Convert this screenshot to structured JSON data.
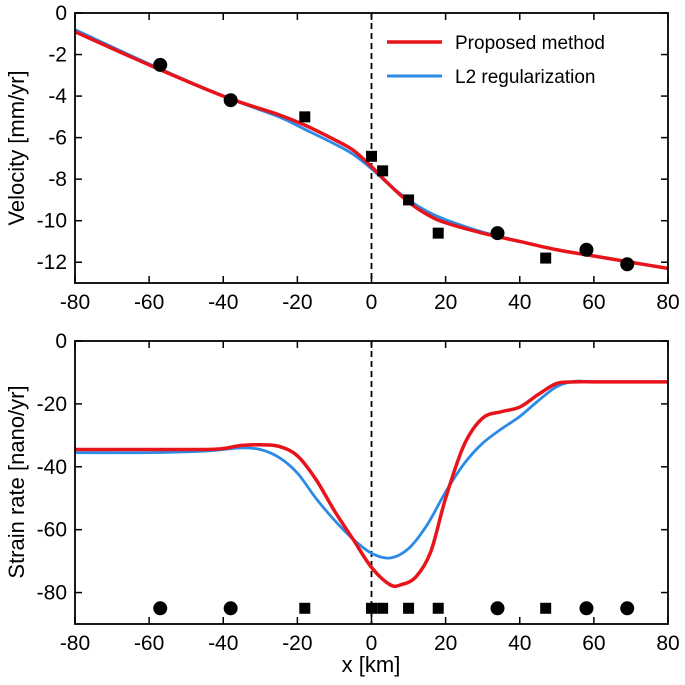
{
  "chart_data": [
    {
      "type": "line",
      "xlabel": "",
      "ylabel": "Velocity [mm/yr]",
      "xlim": [
        -80,
        80
      ],
      "ylim": [
        -13,
        0
      ],
      "xticks": [
        "-80",
        "-60",
        "-40",
        "-20",
        "0",
        "20",
        "40",
        "60",
        "80"
      ],
      "yticks": [
        "0",
        "-2",
        "-4",
        "-6",
        "-8",
        "-10",
        "-12"
      ],
      "legend": {
        "placement": "top-right",
        "entries": [
          "Proposed method",
          "L2 regularization"
        ]
      },
      "series": [
        {
          "name": "Proposed method",
          "color": "#e8141c",
          "x": [
            -80,
            -60,
            -40,
            -25,
            -18,
            -10,
            -5,
            0,
            5,
            10,
            15,
            20,
            30,
            40,
            50,
            60,
            70,
            80
          ],
          "y": [
            -0.9,
            -2.5,
            -4.0,
            -4.9,
            -5.4,
            -6.1,
            -6.6,
            -7.4,
            -8.3,
            -9.1,
            -9.7,
            -10.1,
            -10.6,
            -11.0,
            -11.4,
            -11.7,
            -12.0,
            -12.3
          ]
        },
        {
          "name": "L2 regularization",
          "color": "#2b8be6",
          "x": [
            -80,
            -60,
            -40,
            -25,
            -18,
            -10,
            -5,
            0,
            5,
            10,
            15,
            20,
            30,
            40,
            50,
            60,
            70,
            80
          ],
          "y": [
            -0.8,
            -2.45,
            -4.0,
            -5.0,
            -5.6,
            -6.3,
            -6.8,
            -7.5,
            -8.3,
            -9.0,
            -9.55,
            -9.95,
            -10.55,
            -11.0,
            -11.4,
            -11.7,
            -12.0,
            -12.3
          ]
        }
      ],
      "observations": {
        "circles": {
          "x": [
            -57,
            -38,
            34,
            58,
            69
          ],
          "y": [
            -2.5,
            -4.2,
            -10.6,
            -11.4,
            -12.1
          ]
        },
        "squares": {
          "x": [
            -18,
            0,
            3,
            10,
            18,
            47
          ],
          "y": [
            -5.0,
            -6.9,
            -7.6,
            -9.0,
            -10.6,
            -11.8
          ]
        }
      },
      "reference_line_x": 0
    },
    {
      "type": "line",
      "xlabel": "x [km]",
      "ylabel": "Strain rate [nano/yr]",
      "xlim": [
        -80,
        80
      ],
      "ylim": [
        -90,
        0
      ],
      "xticks": [
        "-80",
        "-60",
        "-40",
        "-20",
        "0",
        "20",
        "40",
        "60",
        "80"
      ],
      "yticks": [
        "0",
        "-20",
        "-40",
        "-60",
        "-80"
      ],
      "series": [
        {
          "name": "Proposed method",
          "color": "#e8141c",
          "x": [
            -80,
            -60,
            -45,
            -40,
            -35,
            -30,
            -25,
            -20,
            -15,
            -10,
            -5,
            0,
            5,
            8,
            12,
            16,
            20,
            25,
            30,
            35,
            40,
            45,
            50,
            55,
            60,
            70,
            80
          ],
          "y": [
            -34.5,
            -34.5,
            -34.5,
            -34.2,
            -33.2,
            -33,
            -33.5,
            -36.5,
            -44,
            -54,
            -63,
            -72,
            -77.5,
            -77.5,
            -75,
            -67,
            -50,
            -33,
            -24.5,
            -22.5,
            -21,
            -17,
            -13.5,
            -13,
            -13,
            -13,
            -13
          ]
        },
        {
          "name": "L2 regularization",
          "color": "#2b8be6",
          "x": [
            -80,
            -60,
            -45,
            -40,
            -35,
            -30,
            -25,
            -20,
            -15,
            -10,
            -5,
            0,
            5,
            10,
            15,
            20,
            25,
            30,
            35,
            40,
            45,
            50,
            55,
            60,
            70,
            80
          ],
          "y": [
            -35.5,
            -35.5,
            -35,
            -34.5,
            -34,
            -34.5,
            -37,
            -42,
            -50,
            -57,
            -63,
            -67.5,
            -69,
            -66,
            -58.5,
            -48,
            -39,
            -32.5,
            -28,
            -24,
            -19,
            -14.5,
            -12.8,
            -13,
            -13,
            -13
          ]
        }
      ],
      "station_markers": {
        "y": -85,
        "circles_x": [
          -57,
          -38,
          34,
          58,
          69
        ],
        "squares_x": [
          -18,
          0,
          3,
          10,
          18,
          47
        ]
      },
      "reference_line_x": 0
    }
  ]
}
